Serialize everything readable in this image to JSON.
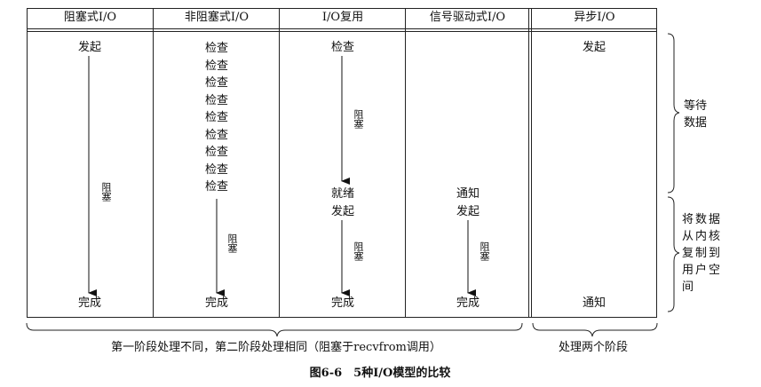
{
  "headers": [
    "阻塞式I/O",
    "非阻塞式I/O",
    "I/O复用",
    "信号驱动式I/O",
    "异步I/O"
  ],
  "columns": {
    "blocking": {
      "start": "发起",
      "block": "阻塞",
      "end": "完成"
    },
    "nonblocking": {
      "checks": [
        "检查",
        "检查",
        "检查",
        "检查",
        "检查",
        "检查",
        "检查",
        "检查",
        "检查"
      ],
      "block": "阻塞",
      "end": "完成"
    },
    "multiplex": {
      "check": "检查",
      "block1": "阻塞",
      "ready": "就绪",
      "start": "发起",
      "block2": "阻塞",
      "end": "完成"
    },
    "signal": {
      "notify": "通知",
      "start": "发起",
      "block": "阻塞",
      "end": "完成"
    },
    "async": {
      "start": "发起",
      "notify": "通知"
    }
  },
  "phases": {
    "wait": "等待\n数据",
    "copy": "将数据\n从内核\n复制到\n用户空\n间"
  },
  "footer": {
    "left": "第一阶段处理不同，第二阶段处理相同（阻塞于recvfrom调用）",
    "right": "处理两个阶段"
  },
  "caption": "图6-6　5种I/O模型的比较"
}
